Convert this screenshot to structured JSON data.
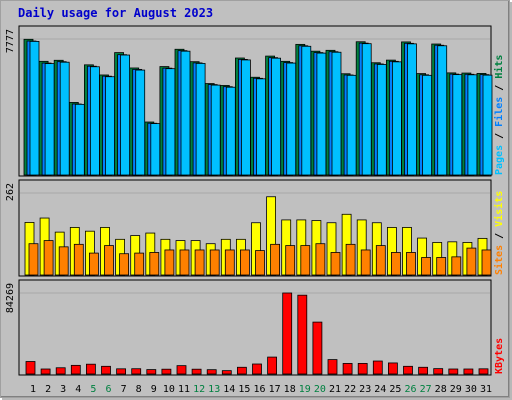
{
  "title": "Daily usage for August 2023",
  "colors": {
    "hits": "#008040",
    "files": "#0080ff",
    "pages": "#00c0ff",
    "visits": "#ffff00",
    "sites": "#ff8000",
    "kbytes": "#ff0000",
    "weekend_label": "#008040",
    "weekday_label": "#000000",
    "slash": "#000000"
  },
  "chart_data": [
    {
      "type": "bar",
      "panel": "top",
      "ymax_label": "7777",
      "ylim": [
        0,
        7777
      ],
      "side_labels": [
        "Pages",
        "Files",
        "Hits"
      ],
      "categories": [
        "1",
        "2",
        "3",
        "4",
        "5",
        "6",
        "7",
        "8",
        "9",
        "10",
        "11",
        "12",
        "13",
        "14",
        "15",
        "16",
        "17",
        "18",
        "19",
        "20",
        "21",
        "22",
        "23",
        "24",
        "25",
        "26",
        "27",
        "28",
        "29",
        "30",
        "31"
      ],
      "series": [
        {
          "name": "Hits",
          "values": [
            7760,
            6500,
            6560,
            4150,
            6300,
            5720,
            7000,
            6120,
            3030,
            6200,
            7190,
            6480,
            5230,
            5120,
            6690,
            5590,
            6800,
            6500,
            7470,
            7080,
            7130,
            5790,
            7620,
            6420,
            6570,
            7610,
            5800,
            7490,
            5840,
            5830,
            5810
          ]
        },
        {
          "name": "Files",
          "values": [
            7660,
            6400,
            6480,
            4060,
            6220,
            5650,
            6880,
            6040,
            2960,
            6110,
            7110,
            6410,
            5170,
            5050,
            6610,
            5530,
            6710,
            6430,
            7390,
            7000,
            7050,
            5720,
            7540,
            6350,
            6500,
            7530,
            5730,
            7420,
            5770,
            5760,
            5740
          ]
        },
        {
          "name": "Pages",
          "values": [
            7640,
            6370,
            6450,
            4040,
            6190,
            5620,
            6860,
            6000,
            2940,
            6080,
            7080,
            6380,
            5140,
            5020,
            6580,
            5500,
            6680,
            6400,
            7360,
            6970,
            7020,
            5700,
            7510,
            6320,
            6470,
            7500,
            5700,
            7390,
            5740,
            5730,
            5710
          ]
        }
      ]
    },
    {
      "type": "bar",
      "panel": "middle",
      "ymax_label": "262",
      "ylim": [
        0,
        262
      ],
      "side_labels": [
        "Sites",
        "Visits"
      ],
      "categories": [
        "1",
        "2",
        "3",
        "4",
        "5",
        "6",
        "7",
        "8",
        "9",
        "10",
        "11",
        "12",
        "13",
        "14",
        "15",
        "16",
        "17",
        "18",
        "19",
        "20",
        "21",
        "22",
        "23",
        "24",
        "25",
        "26",
        "27",
        "28",
        "29",
        "30",
        "31"
      ],
      "series": [
        {
          "name": "Visits",
          "values": [
            168,
            182,
            137,
            152,
            140,
            152,
            114,
            126,
            134,
            114,
            110,
            110,
            100,
            114,
            114,
            167,
            250,
            176,
            176,
            174,
            167,
            194,
            176,
            167,
            152,
            152,
            118,
            104,
            106,
            104,
            117
          ]
        },
        {
          "name": "Sites",
          "values": [
            100,
            110,
            90,
            98,
            70,
            94,
            68,
            70,
            72,
            80,
            80,
            80,
            80,
            80,
            80,
            78,
            98,
            94,
            94,
            100,
            72,
            98,
            80,
            94,
            72,
            72,
            56,
            56,
            58,
            86,
            80
          ]
        }
      ]
    },
    {
      "type": "bar",
      "panel": "bottom",
      "ymax_label": "84269",
      "ylim": [
        0,
        84269
      ],
      "side_labels": [
        "KBytes"
      ],
      "categories": [
        "1",
        "2",
        "3",
        "4",
        "5",
        "6",
        "7",
        "8",
        "9",
        "10",
        "11",
        "12",
        "13",
        "14",
        "15",
        "16",
        "17",
        "18",
        "19",
        "20",
        "21",
        "22",
        "23",
        "24",
        "25",
        "26",
        "27",
        "28",
        "29",
        "30",
        "31"
      ],
      "weekend_days": [
        "5",
        "6",
        "12",
        "13",
        "19",
        "20",
        "26",
        "27"
      ],
      "series": [
        {
          "name": "KBytes",
          "values": [
            13000,
            5200,
            6500,
            9000,
            10200,
            8000,
            5400,
            5500,
            4600,
            5000,
            8700,
            5000,
            4500,
            3500,
            7000,
            10400,
            17600,
            84269,
            82000,
            54000,
            15000,
            11000,
            11000,
            13500,
            11500,
            8000,
            7000,
            5600,
            5200,
            5200,
            5400
          ]
        }
      ]
    }
  ]
}
